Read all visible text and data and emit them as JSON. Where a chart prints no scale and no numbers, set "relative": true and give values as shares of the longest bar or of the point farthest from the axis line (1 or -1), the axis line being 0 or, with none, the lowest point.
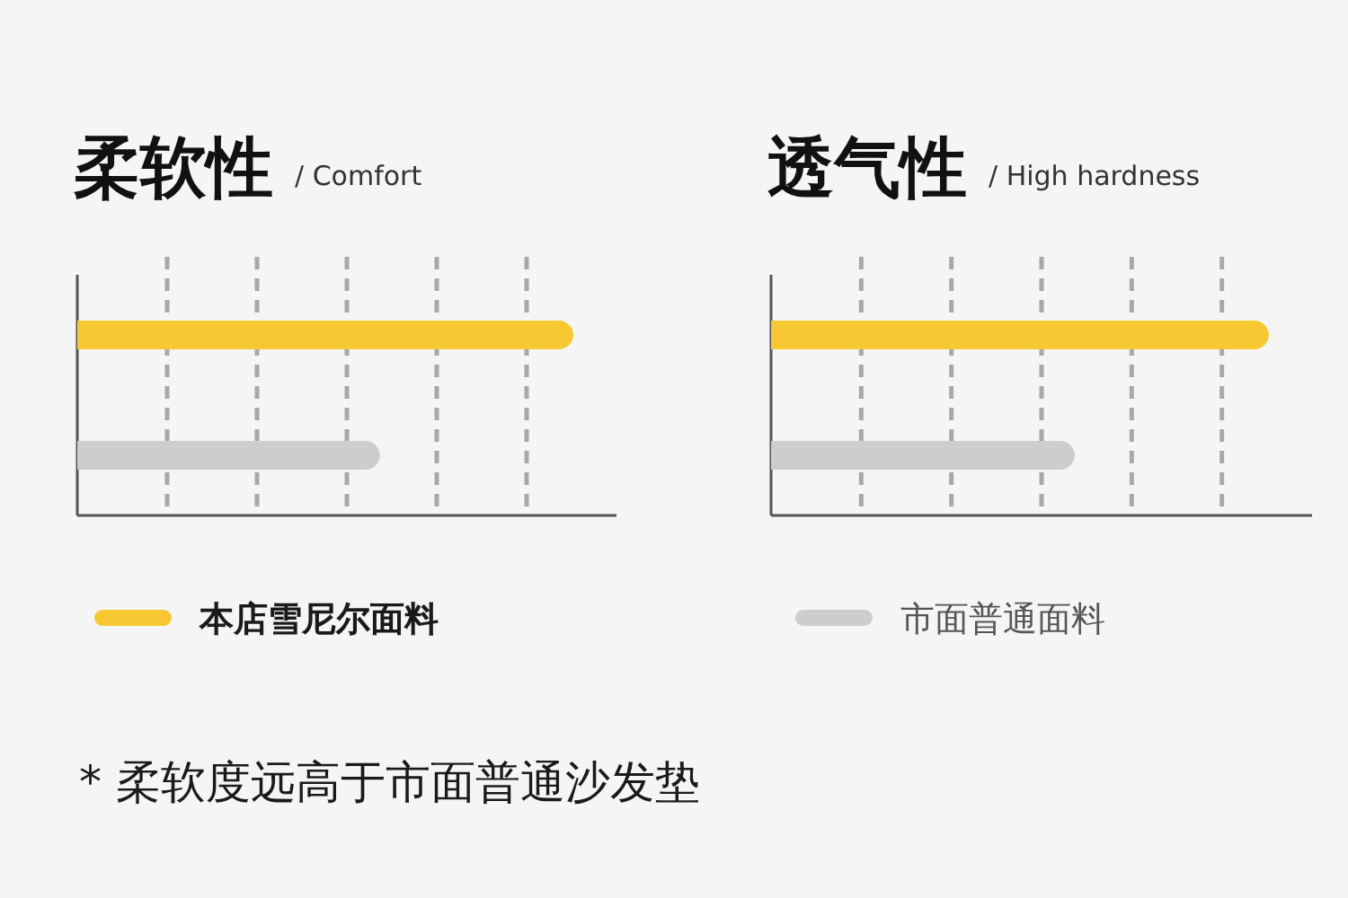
{
  "chart_data": [
    {
      "type": "bar",
      "orientation": "horizontal",
      "stacked": true,
      "relative": true,
      "title": "柔软性",
      "subtitle": "/ Comfort",
      "categories": [
        null,
        null
      ],
      "grid": "x",
      "legend": "bottom",
      "series": [
        {
          "name": "本店雪尼尔面料",
          "color": "#f8c833",
          "values": [
            1,
            null
          ]
        },
        {
          "color": "#cdcdcd",
          "values": [
            null,
            0.61
          ]
        }
      ],
      "annotations": [
        "* 柔软度远高于市面普通沙发垫"
      ]
    },
    {
      "type": "bar",
      "orientation": "horizontal",
      "stacked": true,
      "relative": true,
      "title": "透气性",
      "subtitle": "/ High hardness",
      "categories": [
        null,
        null
      ],
      "grid": "x",
      "legend": "bottom",
      "series": [
        {
          "color": "#f8c833",
          "values": [
            1,
            null
          ]
        },
        {
          "name": "市面普通面料",
          "color": "#cdcdcd",
          "values": [
            null,
            0.61
          ]
        }
      ]
    }
  ]
}
